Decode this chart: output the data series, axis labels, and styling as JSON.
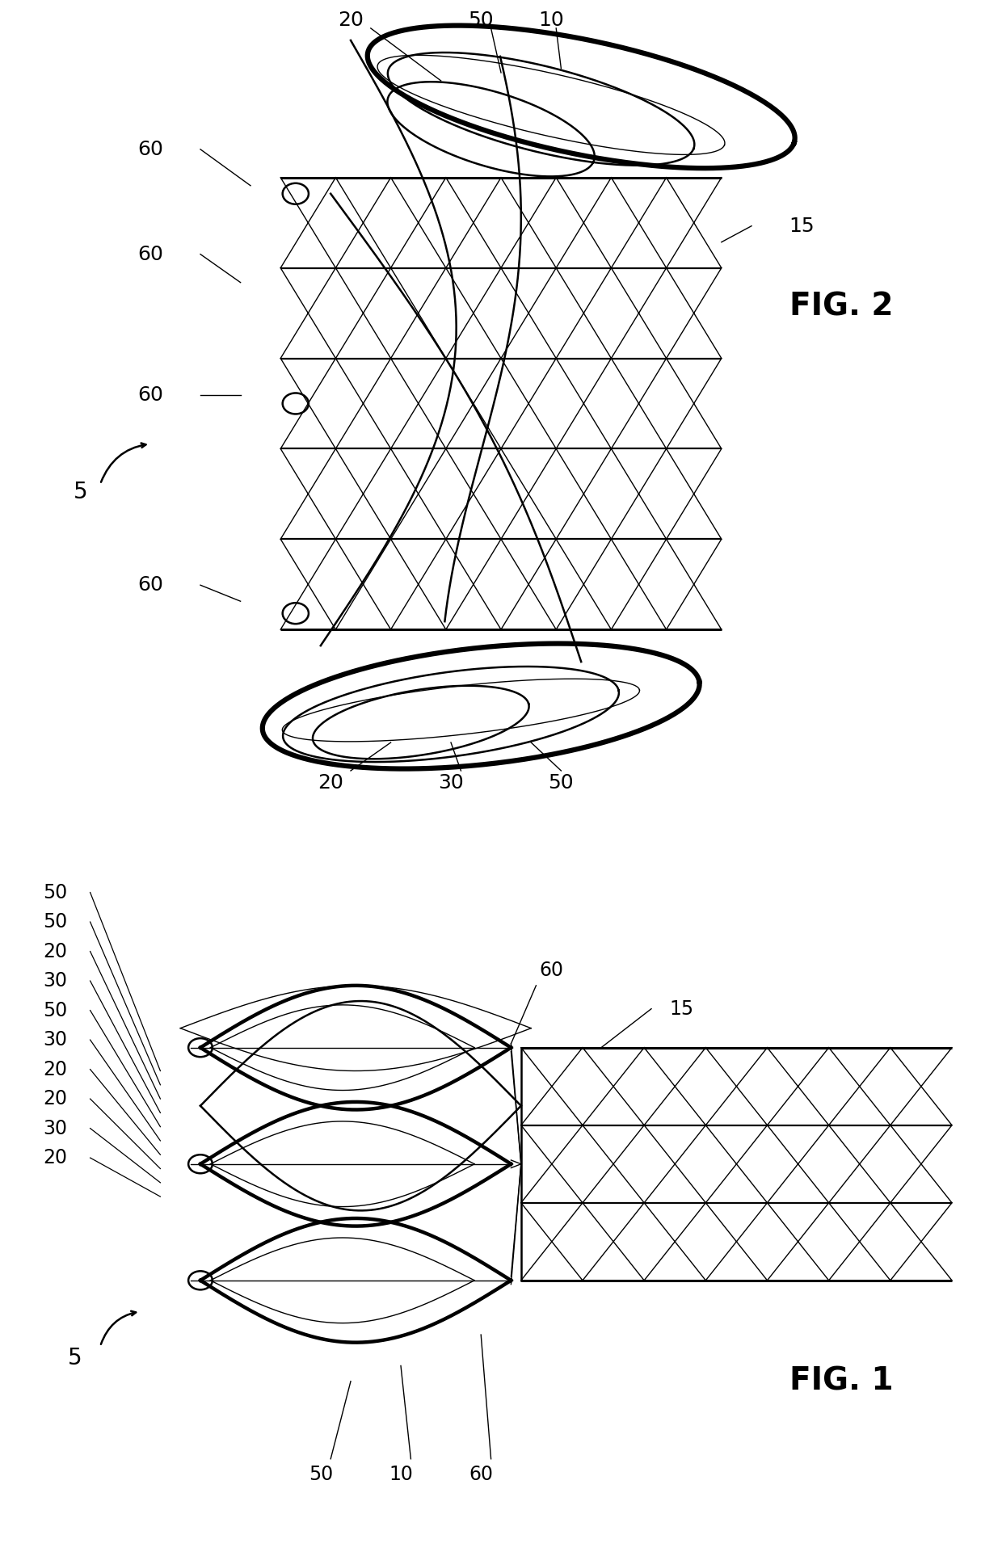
{
  "bg": "#ffffff",
  "lc": "#000000",
  "fw": 12.4,
  "fh": 19.21
}
